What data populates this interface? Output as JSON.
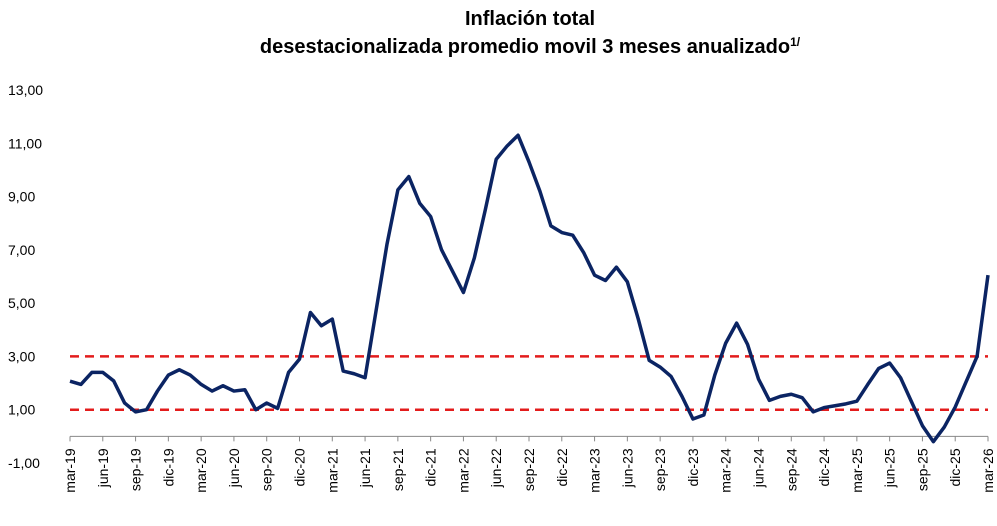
{
  "chart_data": {
    "type": "line",
    "title": "Inflación total",
    "subtitle": "desestacionalizada promedio movil 3 meses anualizado",
    "title_note": "1/",
    "categories": [
      "mar-19",
      null,
      null,
      "jun-19",
      null,
      null,
      "sep-19",
      null,
      null,
      "dic-19",
      null,
      null,
      "mar-20",
      null,
      null,
      "jun-20",
      null,
      null,
      "sep-20",
      null,
      null,
      "dic-20",
      null,
      null,
      "mar-21",
      null,
      null,
      "jun-21",
      null,
      null,
      "sep-21",
      null,
      null,
      "dic-21",
      null,
      null,
      "mar-22",
      null,
      null,
      "jun-22",
      null,
      null,
      "sep-22",
      null,
      null,
      "dic-22",
      null,
      null,
      "mar-23",
      null,
      null,
      "jun-23",
      null,
      null,
      "sep-23",
      null,
      null,
      "dic-23",
      null,
      null,
      "mar-24",
      null,
      null,
      "jun-24",
      null,
      null,
      "sep-24",
      null,
      null,
      "dic-24",
      null,
      null,
      "mar-25",
      null,
      null,
      "jun-25",
      null,
      null,
      "sep-25",
      null,
      null,
      "dic-25",
      null,
      null,
      "mar-26"
    ],
    "values": [
      2.07,
      1.95,
      2.4,
      2.4,
      2.08,
      1.25,
      0.92,
      1.0,
      1.7,
      2.3,
      2.5,
      2.3,
      1.95,
      1.7,
      1.9,
      1.7,
      1.75,
      1.0,
      1.25,
      1.05,
      2.4,
      2.9,
      4.65,
      4.15,
      4.4,
      2.45,
      2.35,
      2.2,
      4.7,
      7.2,
      9.25,
      9.75,
      8.75,
      8.25,
      7.0,
      6.2,
      5.4,
      6.7,
      8.5,
      10.4,
      10.9,
      11.3,
      10.3,
      9.2,
      7.9,
      7.65,
      7.55,
      6.9,
      6.05,
      5.85,
      6.35,
      5.8,
      4.4,
      2.85,
      2.6,
      2.25,
      1.5,
      0.65,
      0.8,
      2.3,
      3.5,
      4.25,
      3.45,
      2.15,
      1.35,
      1.5,
      1.58,
      1.45,
      0.92,
      1.08,
      1.15,
      1.22,
      1.32,
      1.95,
      2.55,
      2.75,
      2.2,
      1.3,
      0.4,
      -0.2,
      0.35,
      1.1,
      2.05,
      3.0,
      6.05
    ],
    "color": "#0b2463",
    "ylim": [
      -1,
      13
    ],
    "yticks": [
      {
        "value": -1,
        "label": "-1,00"
      },
      {
        "value": 1,
        "label": "1,00"
      },
      {
        "value": 3,
        "label": "3,00"
      },
      {
        "value": 5,
        "label": "5,00"
      },
      {
        "value": 7,
        "label": "7,00"
      },
      {
        "value": 9,
        "label": "9,00"
      },
      {
        "value": 11,
        "label": "11,00"
      },
      {
        "value": 13,
        "label": "13,00"
      }
    ],
    "hlines": [
      1,
      3
    ],
    "hline_color": "#e31c1c"
  }
}
